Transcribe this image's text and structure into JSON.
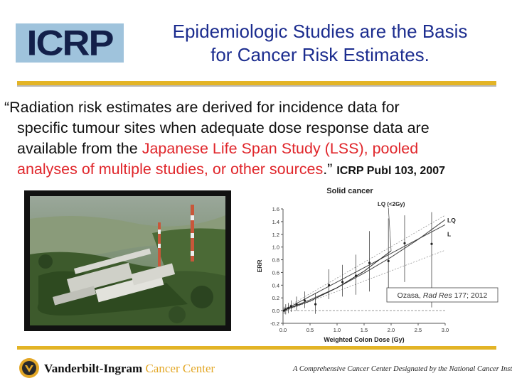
{
  "header": {
    "logo_text": "ICRP",
    "title_line1": "Epidemiologic Studies are the Basis",
    "title_line2": "for Cancer Risk Estimates."
  },
  "quote": {
    "line1": "“Radiation risk estimates are derived for incidence data for",
    "line2": "specific tumour sites when adequate dose response data are",
    "line3_black": "available from the ",
    "line3_red": "Japanese Life Span Study (LSS), pooled",
    "line4_red": "analyses of multiple studies, or other sources",
    "line4_end": ".”",
    "citation": "ICRP Publ 103, 2007"
  },
  "colors": {
    "title_blue": "#1c2d8f",
    "rule_gold": "#e3b426",
    "highlight_red": "#e0262b",
    "logo_bg": "#9fc3dc"
  },
  "chart_data": {
    "type": "line",
    "title": "Solid cancer",
    "xlabel": "Weighted Colon Dose (Gy)",
    "ylabel": "ERR",
    "xlim": [
      0,
      3.0
    ],
    "ylim": [
      -0.2,
      1.6
    ],
    "x_ticks": [
      "0.0",
      "0.5",
      "1.0",
      "1.5",
      "2.0",
      "2.5",
      "3.0"
    ],
    "y_ticks": [
      "-0.2",
      "0.0",
      "0.2",
      "0.4",
      "0.6",
      "0.8",
      "1.0",
      "1.2",
      "1.4",
      "1.6"
    ],
    "series": [
      {
        "name": "L",
        "x": [
          0,
          3.0
        ],
        "y": [
          0,
          1.35
        ]
      },
      {
        "name": "LQ",
        "x": [
          0,
          0.5,
          1.0,
          1.5,
          2.0,
          2.5,
          3.0
        ],
        "y": [
          0,
          0.17,
          0.36,
          0.59,
          0.84,
          1.12,
          1.43
        ]
      },
      {
        "name": "LQ (<2Gy)",
        "x": [
          0,
          0.5,
          1.0,
          1.5,
          2.0
        ],
        "y": [
          0,
          0.15,
          0.36,
          0.62,
          0.94
        ]
      }
    ],
    "points": [
      {
        "x": 0.02,
        "y": 0.0,
        "lo": -0.05,
        "hi": 0.06
      },
      {
        "x": 0.05,
        "y": 0.02,
        "lo": -0.06,
        "hi": 0.1
      },
      {
        "x": 0.1,
        "y": 0.04,
        "lo": -0.04,
        "hi": 0.12
      },
      {
        "x": 0.15,
        "y": 0.07,
        "lo": -0.02,
        "hi": 0.16
      },
      {
        "x": 0.25,
        "y": 0.1,
        "lo": 0.0,
        "hi": 0.22
      },
      {
        "x": 0.4,
        "y": 0.16,
        "lo": 0.04,
        "hi": 0.3
      },
      {
        "x": 0.6,
        "y": 0.1,
        "lo": -0.05,
        "hi": 0.28
      },
      {
        "x": 0.85,
        "y": 0.4,
        "lo": 0.18,
        "hi": 0.65
      },
      {
        "x": 1.1,
        "y": 0.45,
        "lo": 0.22,
        "hi": 0.72
      },
      {
        "x": 1.35,
        "y": 0.55,
        "lo": 0.25,
        "hi": 0.88
      },
      {
        "x": 1.6,
        "y": 0.75,
        "lo": 0.3,
        "hi": 1.25
      },
      {
        "x": 1.95,
        "y": 0.78,
        "lo": 0.2,
        "hi": 1.45
      },
      {
        "x": 2.25,
        "y": 1.06,
        "lo": 0.45,
        "hi": 1.5
      },
      {
        "x": 2.75,
        "y": 1.05,
        "lo": 0.05,
        "hi": 1.55
      }
    ],
    "annotation": {
      "author": "Ozasa, ",
      "journal": "Rad Res",
      "rest": " 177; 2012"
    },
    "grid": false
  },
  "footer": {
    "institution": "Vanderbilt-Ingram",
    "institution_cc": " Cancer Center",
    "tagline": "A Comprehensive Cancer Center Designated by the National Cancer Institute"
  }
}
